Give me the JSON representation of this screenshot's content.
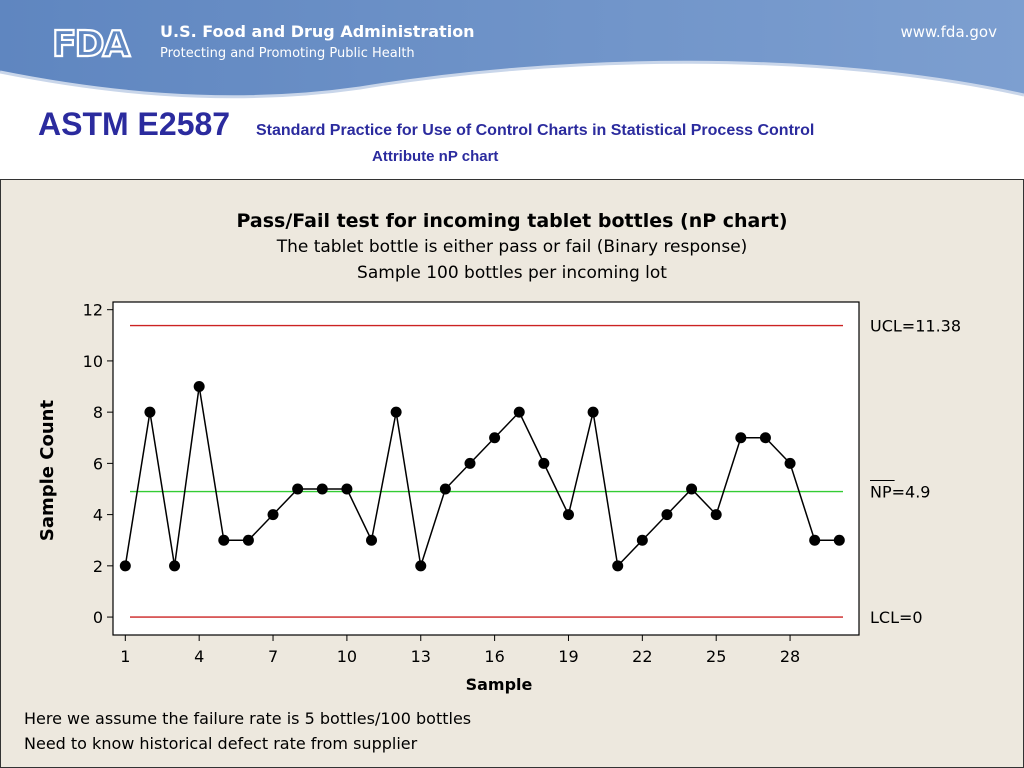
{
  "header": {
    "org_name": "U.S. Food and Drug Administration",
    "tagline": "Protecting and Promoting Public Health",
    "url": "www.fda.gov",
    "logo_text": "FDA",
    "banner_color": "#6f93c8"
  },
  "slide": {
    "title": "ASTM E2587",
    "subtitle": "Standard Practice for Use of Control Charts in Statistical Process Control",
    "chart_kind": "Attribute nP chart"
  },
  "notes": [
    "Here we assume the failure rate is 5 bottles/100 bottles",
    "Need to know historical defect rate from supplier"
  ],
  "chart_data": {
    "type": "line",
    "title": "Pass/Fail test for incoming tablet bottles (nP chart)",
    "subtitle": [
      "The tablet bottle is either pass or fail (Binary response)",
      "Sample 100 bottles per incoming lot"
    ],
    "xlabel": "Sample",
    "ylabel": "Sample Count",
    "x": [
      1,
      2,
      3,
      4,
      5,
      6,
      7,
      8,
      9,
      10,
      11,
      12,
      13,
      14,
      15,
      16,
      17,
      18,
      19,
      20,
      21,
      22,
      23,
      24,
      25,
      26,
      27,
      28,
      29,
      30
    ],
    "values": [
      2,
      8,
      2,
      9,
      3,
      3,
      4,
      5,
      5,
      5,
      3,
      8,
      2,
      5,
      6,
      7,
      8,
      6,
      4,
      8,
      2,
      3,
      4,
      5,
      4,
      7,
      7,
      6,
      3,
      3
    ],
    "xticks": [
      1,
      4,
      7,
      10,
      13,
      16,
      19,
      22,
      25,
      28
    ],
    "yticks": [
      0,
      2,
      4,
      6,
      8,
      10,
      12
    ],
    "xlim": [
      0.5,
      30.8
    ],
    "ylim": [
      -0.7,
      12.3
    ],
    "control_lines": [
      {
        "label": "UCL=11.38",
        "value": 11.38,
        "color": "#cc2222"
      },
      {
        "label": "NP=4.9",
        "value": 4.9,
        "color": "#33cc33",
        "overline": "NP"
      },
      {
        "label": "LCL=0",
        "value": 0,
        "color": "#cc2222"
      }
    ],
    "marker_color": "#000000",
    "line_color": "#000000"
  }
}
